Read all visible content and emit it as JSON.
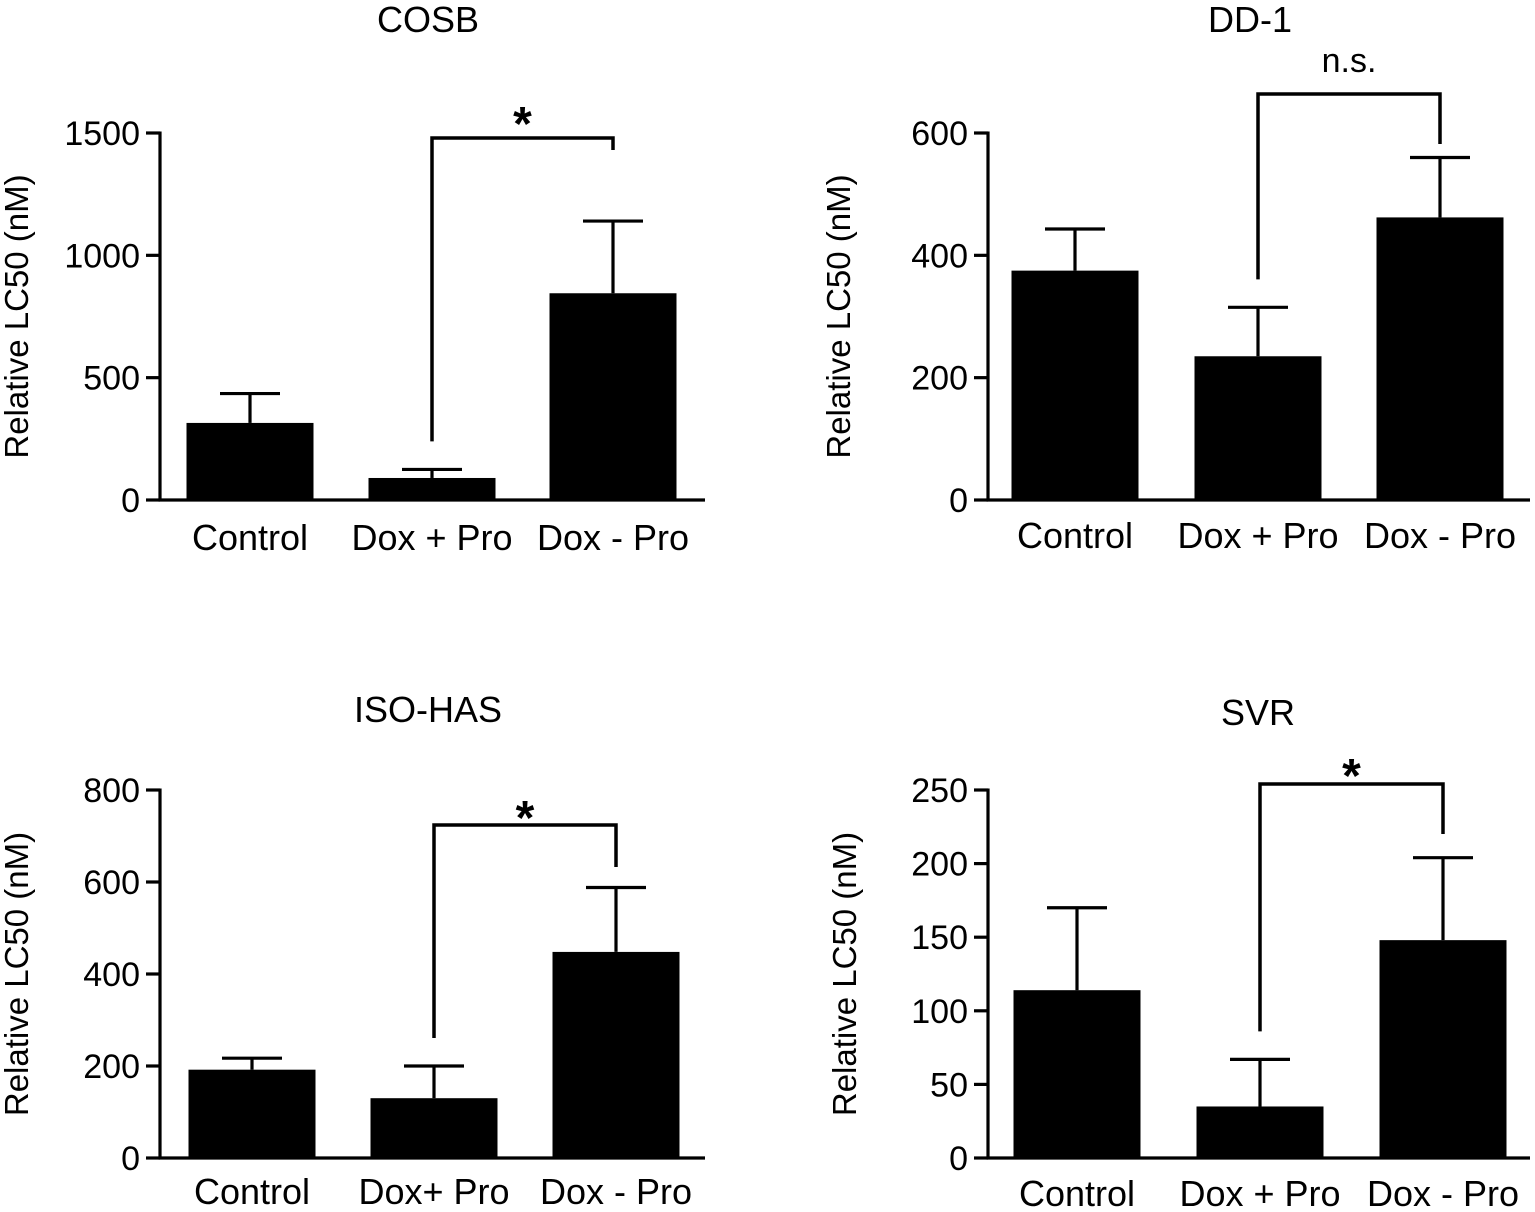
{
  "chart_data": [
    {
      "type": "bar",
      "title": "COSB",
      "ylabel": "Relative LC50 (nM)",
      "xlabel": "",
      "categories": [
        "Control",
        "Dox + Pro",
        "Dox - Pro"
      ],
      "values": [
        315,
        90,
        845
      ],
      "errors": [
        120,
        35,
        295
      ],
      "ylim": [
        0,
        1500
      ],
      "yticks": [
        "0",
        "500",
        "1000",
        "1500"
      ],
      "significance": {
        "from": 1,
        "to": 2,
        "label": "*"
      }
    },
    {
      "type": "bar",
      "title": "DD-1",
      "ylabel": "Relative LC50 (nM)",
      "xlabel": "",
      "categories": [
        "Control",
        "Dox + Pro",
        "Dox - Pro"
      ],
      "values": [
        375,
        235,
        462
      ],
      "errors": [
        68,
        80,
        98
      ],
      "ylim": [
        0,
        600
      ],
      "yticks": [
        "0",
        "200",
        "400",
        "600"
      ],
      "significance": {
        "from": 1,
        "to": 2,
        "label": "n.s."
      }
    },
    {
      "type": "bar",
      "title": "ISO-HAS",
      "ylabel": "Relative LC50 (nM)",
      "xlabel": "",
      "categories": [
        "Control",
        "Dox+ Pro",
        "Dox - Pro"
      ],
      "values": [
        192,
        130,
        448
      ],
      "errors": [
        25,
        70,
        140
      ],
      "ylim": [
        0,
        800
      ],
      "yticks": [
        "0",
        "200",
        "400",
        "600",
        "800"
      ],
      "significance": {
        "from": 1,
        "to": 2,
        "label": "*"
      }
    },
    {
      "type": "bar",
      "title": "SVR",
      "ylabel": "Relative LC50 (nM)",
      "xlabel": "",
      "categories": [
        "Control",
        "Dox + Pro",
        "Dox - Pro"
      ],
      "values": [
        114,
        35,
        148
      ],
      "errors": [
        56,
        32,
        56
      ],
      "ylim": [
        0,
        250
      ],
      "yticks": [
        "0",
        "50",
        "100",
        "150",
        "200",
        "250"
      ],
      "significance": {
        "from": 1,
        "to": 2,
        "label": "*"
      }
    }
  ]
}
